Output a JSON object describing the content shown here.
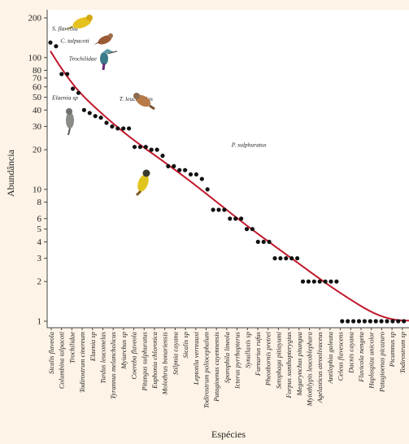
{
  "chart_data": {
    "type": "scatter",
    "xlabel": "Espécies",
    "ylabel": "Abundância",
    "y_scale": "log",
    "ylim": [
      1,
      200
    ],
    "yticks": [
      1,
      2,
      3,
      4,
      5,
      6,
      8,
      10,
      20,
      30,
      40,
      50,
      60,
      70,
      80,
      100,
      200
    ],
    "ytick_labels": [
      "1",
      "2",
      "3",
      "4",
      "5",
      "6",
      "8",
      "10",
      "20",
      "30",
      "40",
      "50",
      "60",
      "70",
      "80",
      "100",
      "200"
    ],
    "x_tick_labels": [
      "Sicalis flaveola",
      "Columbina talpacoti",
      "Trochilidae",
      "Todirostrum cinereum",
      "Elaenia sp",
      "Turdus leucomelas",
      "Tyrannus melancholicus",
      "Myiarchus sp",
      "Coereba flaveola",
      "Pitangus sulphuratus",
      "Euphonia chlorotica",
      "Molothrus bonariensis",
      "Stilpnia cayana",
      "Sicalis sp",
      "Leptotila verreauxi",
      "Todirostrum poliocephalum",
      "Patagioenas cayennensis",
      "Sporophila lineola",
      "Icterus pyrrhopterus",
      "Synallaxis sp",
      "Furnarius rufus",
      "Pheothornis pretrei",
      "Setophaga pitiayumi",
      "Forpus xanthopterygius",
      "Megarynchus pitangua",
      "Myiothlypis leucoblephara",
      "Agelasticus atroolivaceus",
      "Antilophia galeata",
      "Celeus flavescens",
      "Dacnis cayana",
      "Fluvicola nengeta",
      "Haplospiza unicolor",
      "Patagioenas picazuro",
      "Picumnus sp",
      "Todirostrum sp"
    ],
    "points": [
      130,
      122,
      75,
      75,
      58,
      54,
      40,
      38,
      36,
      35,
      32,
      30,
      29,
      29,
      29,
      21,
      21,
      21,
      20,
      20,
      18,
      15,
      15,
      14,
      14,
      13,
      13,
      12,
      10,
      7,
      7,
      7,
      6,
      6,
      6,
      5,
      5,
      4,
      4,
      4,
      3,
      3,
      3,
      3,
      3,
      2,
      2,
      2,
      2,
      2,
      2,
      2,
      1,
      1,
      1,
      1,
      1,
      1,
      1,
      1,
      1,
      1,
      1,
      1,
      1,
      1,
      1,
      1,
      1,
      1,
      1,
      1,
      1,
      1,
      1,
      1,
      1,
      1,
      1,
      1,
      1
    ],
    "fit_line": [
      {
        "x": 1,
        "y": 112
      },
      {
        "x": 3,
        "y": 82
      },
      {
        "x": 6,
        "y": 55
      },
      {
        "x": 10,
        "y": 38
      },
      {
        "x": 15,
        "y": 25
      },
      {
        "x": 21,
        "y": 16.5
      },
      {
        "x": 26,
        "y": 11.5
      },
      {
        "x": 31,
        "y": 7.8
      },
      {
        "x": 36,
        "y": 5.3
      },
      {
        "x": 41,
        "y": 3.7
      },
      {
        "x": 46,
        "y": 2.6
      },
      {
        "x": 50,
        "y": 1.95
      },
      {
        "x": 54,
        "y": 1.5
      },
      {
        "x": 58,
        "y": 1.18
      },
      {
        "x": 61,
        "y": 1.05
      },
      {
        "x": 64,
        "y": 1.0
      },
      {
        "x": 81,
        "y": 1.0
      }
    ],
    "fit_color": "#c0182a",
    "point_color": "#111111",
    "annotations": [
      {
        "text": "S. flaveola",
        "x": 1,
        "y": 160
      },
      {
        "text": "C. talpacoti",
        "x": 2.5,
        "y": 130
      },
      {
        "text": "Trochilidae",
        "x": 4,
        "y": 95
      },
      {
        "text": "Elaenia sp",
        "x": 1,
        "y": 48
      },
      {
        "text": "T. leucomelas",
        "x": 13,
        "y": 47
      },
      {
        "text": "P. sulphuratus",
        "x": 33,
        "y": 21
      }
    ]
  }
}
